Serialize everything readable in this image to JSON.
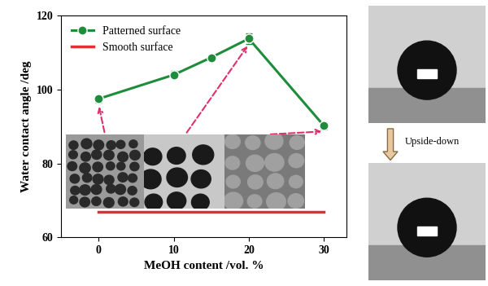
{
  "chart_data": {
    "type": "line",
    "x_label": "MeOH content /vol. %",
    "y_label": "Water contact angle /deg",
    "series": [
      {
        "name": "Patterned surface",
        "color": "#1e8c3a",
        "marker": "o",
        "line_style": "solid",
        "x": [
          0,
          10,
          15,
          20,
          30
        ],
        "values": [
          97.5,
          104.0,
          108.7,
          113.8,
          90.2
        ],
        "errors": [
          1.0,
          1.0,
          0.8,
          1.5,
          1.0
        ]
      },
      {
        "name": "Smooth surface",
        "color": "#e03030",
        "marker": "none",
        "line_style": "solid",
        "x": [
          0,
          30
        ],
        "values": [
          67.0,
          67.0
        ]
      }
    ],
    "xlim": [
      -5,
      33
    ],
    "ylim": [
      60,
      120
    ],
    "xticks": [
      0,
      10,
      20,
      30
    ],
    "yticks": [
      60,
      80,
      100,
      120
    ],
    "legend": "upper left",
    "grid": false,
    "annotation": "Upside-down"
  }
}
